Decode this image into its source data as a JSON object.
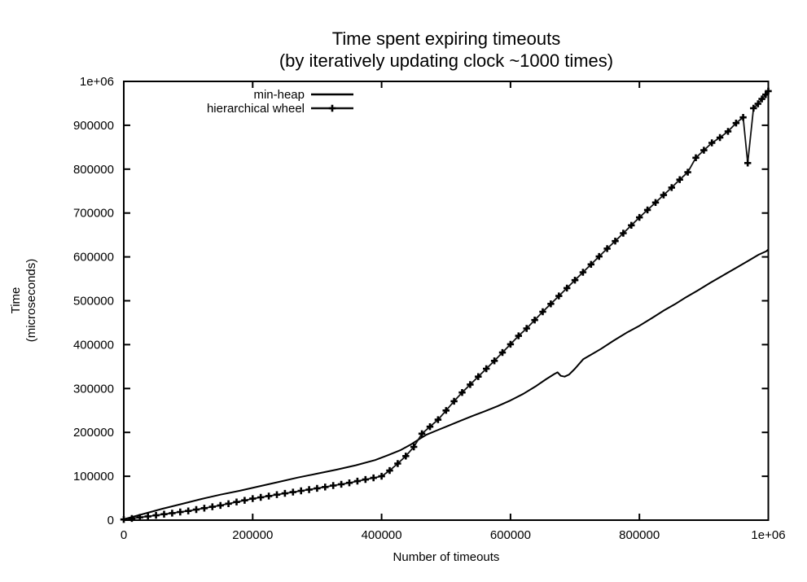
{
  "figure": {
    "title": "Time spent expiring timeouts",
    "subtitle": "(by iteratively updating clock ~1000 times)",
    "xlabel": "Number of timeouts",
    "ylabel_line1": "Time",
    "ylabel_line2": "(microseconds)",
    "background": "#ffffff",
    "foreground": "#000000"
  },
  "chart_data": {
    "type": "line",
    "title": "Time spent expiring timeouts",
    "subtitle": "(by iteratively updating clock ~1000 times)",
    "xlabel": "Number of timeouts",
    "ylabel": "Time (microseconds)",
    "xlim": [
      0,
      1000000
    ],
    "ylim": [
      0,
      1000000
    ],
    "grid": false,
    "legend_position": "top-left-inside",
    "x_ticks": [
      {
        "value": 0,
        "label": "0"
      },
      {
        "value": 200000,
        "label": "200000"
      },
      {
        "value": 400000,
        "label": "400000"
      },
      {
        "value": 600000,
        "label": "600000"
      },
      {
        "value": 800000,
        "label": "800000"
      },
      {
        "value": 1000000,
        "label": "1e+06"
      }
    ],
    "y_ticks": [
      {
        "value": 0,
        "label": "0"
      },
      {
        "value": 100000,
        "label": "100000"
      },
      {
        "value": 200000,
        "label": "200000"
      },
      {
        "value": 300000,
        "label": "300000"
      },
      {
        "value": 400000,
        "label": "400000"
      },
      {
        "value": 500000,
        "label": "500000"
      },
      {
        "value": 600000,
        "label": "600000"
      },
      {
        "value": 700000,
        "label": "700000"
      },
      {
        "value": 800000,
        "label": "800000"
      },
      {
        "value": 900000,
        "label": "900000"
      },
      {
        "value": 1000000,
        "label": "1e+06"
      }
    ],
    "series": [
      {
        "name": "min-heap",
        "style": "line",
        "marker": "none",
        "color": "#000000",
        "width": 2,
        "points": [
          [
            0,
            2000
          ],
          [
            30000,
            14000
          ],
          [
            60000,
            26000
          ],
          [
            90000,
            37000
          ],
          [
            120000,
            48000
          ],
          [
            150000,
            58000
          ],
          [
            180000,
            67000
          ],
          [
            210000,
            77000
          ],
          [
            240000,
            87000
          ],
          [
            270000,
            97000
          ],
          [
            300000,
            106000
          ],
          [
            330000,
            115000
          ],
          [
            360000,
            125000
          ],
          [
            390000,
            137000
          ],
          [
            410000,
            148000
          ],
          [
            430000,
            160000
          ],
          [
            445000,
            172000
          ],
          [
            460000,
            186000
          ],
          [
            470000,
            195000
          ],
          [
            485000,
            204000
          ],
          [
            500000,
            213000
          ],
          [
            520000,
            225000
          ],
          [
            540000,
            237000
          ],
          [
            560000,
            248000
          ],
          [
            580000,
            260000
          ],
          [
            600000,
            273000
          ],
          [
            620000,
            288000
          ],
          [
            640000,
            306000
          ],
          [
            655000,
            321000
          ],
          [
            668000,
            333000
          ],
          [
            673000,
            337000
          ],
          [
            678000,
            329000
          ],
          [
            684000,
            327000
          ],
          [
            691000,
            332000
          ],
          [
            700000,
            345000
          ],
          [
            713000,
            367000
          ],
          [
            725000,
            377000
          ],
          [
            740000,
            390000
          ],
          [
            760000,
            409000
          ],
          [
            780000,
            427000
          ],
          [
            800000,
            443000
          ],
          [
            820000,
            461000
          ],
          [
            838000,
            478000
          ],
          [
            855000,
            492000
          ],
          [
            870000,
            506000
          ],
          [
            890000,
            523000
          ],
          [
            910000,
            541000
          ],
          [
            930000,
            558000
          ],
          [
            950000,
            575000
          ],
          [
            970000,
            592000
          ],
          [
            985000,
            605000
          ],
          [
            997000,
            613000
          ],
          [
            1000000,
            617000
          ]
        ]
      },
      {
        "name": "hierarchical wheel",
        "style": "linespoints",
        "marker": "plus",
        "color": "#111111",
        "width": 1.8,
        "points": [
          [
            0,
            1500
          ],
          [
            12500,
            3900
          ],
          [
            25000,
            6300
          ],
          [
            37500,
            8600
          ],
          [
            50000,
            11000
          ],
          [
            62500,
            13500
          ],
          [
            75000,
            16000
          ],
          [
            87500,
            18500
          ],
          [
            100000,
            21000
          ],
          [
            112500,
            24100
          ],
          [
            125000,
            27300
          ],
          [
            137500,
            30400
          ],
          [
            150000,
            33500
          ],
          [
            162500,
            37400
          ],
          [
            175000,
            41300
          ],
          [
            187500,
            45100
          ],
          [
            200000,
            49000
          ],
          [
            212500,
            52000
          ],
          [
            225000,
            55000
          ],
          [
            237500,
            58000
          ],
          [
            250000,
            61000
          ],
          [
            262500,
            63900
          ],
          [
            275000,
            66800
          ],
          [
            287500,
            69600
          ],
          [
            300000,
            72500
          ],
          [
            312500,
            75600
          ],
          [
            325000,
            78800
          ],
          [
            337500,
            81900
          ],
          [
            350000,
            85000
          ],
          [
            362500,
            88800
          ],
          [
            375000,
            92500
          ],
          [
            387500,
            96300
          ],
          [
            400000,
            100000
          ],
          [
            412500,
            113000
          ],
          [
            425000,
            129000
          ],
          [
            437500,
            146000
          ],
          [
            450000,
            167000
          ],
          [
            462500,
            197000
          ],
          [
            475000,
            213000
          ],
          [
            487500,
            229000
          ],
          [
            500000,
            250000
          ],
          [
            512500,
            271000
          ],
          [
            525000,
            291000
          ],
          [
            537500,
            309000
          ],
          [
            550000,
            327000
          ],
          [
            562500,
            345000
          ],
          [
            575000,
            363000
          ],
          [
            587500,
            382000
          ],
          [
            600000,
            401000
          ],
          [
            612500,
            420000
          ],
          [
            625000,
            437000
          ],
          [
            637500,
            456000
          ],
          [
            650000,
            475000
          ],
          [
            662500,
            493000
          ],
          [
            675000,
            511000
          ],
          [
            687500,
            529000
          ],
          [
            700000,
            547000
          ],
          [
            712500,
            565000
          ],
          [
            725000,
            583000
          ],
          [
            737500,
            601000
          ],
          [
            750000,
            619000
          ],
          [
            762500,
            636000
          ],
          [
            775000,
            654000
          ],
          [
            787500,
            672000
          ],
          [
            800000,
            690000
          ],
          [
            812500,
            707000
          ],
          [
            825000,
            724000
          ],
          [
            837500,
            741000
          ],
          [
            850000,
            758000
          ],
          [
            862500,
            776000
          ],
          [
            875000,
            793000
          ],
          [
            887500,
            826000
          ],
          [
            900000,
            843000
          ],
          [
            912500,
            860000
          ],
          [
            925000,
            872000
          ],
          [
            937500,
            886000
          ],
          [
            950000,
            905000
          ],
          [
            961000,
            918000
          ],
          [
            968000,
            814000
          ],
          [
            977000,
            939000
          ],
          [
            984000,
            949000
          ],
          [
            990000,
            960000
          ],
          [
            996000,
            970000
          ],
          [
            1000000,
            978000
          ]
        ]
      }
    ]
  }
}
